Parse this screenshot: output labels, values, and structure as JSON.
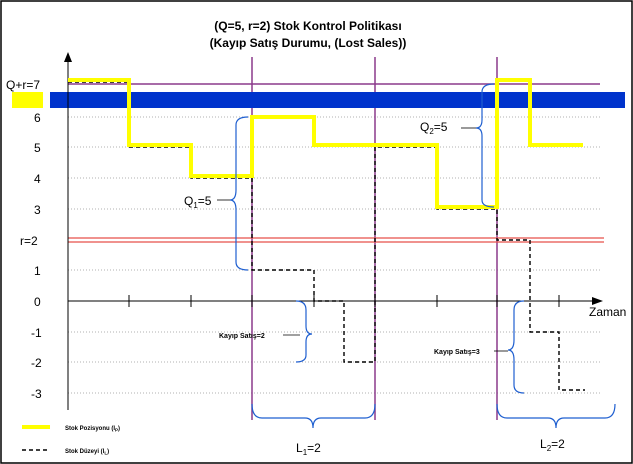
{
  "title_line1": "(Q=5, r=2) Stok Kontrol Politikası",
  "title_line2": "(Kayıp Satış Durumu, (Lost Sales))",
  "y_labels": [
    "Q+r=7",
    "6",
    "5",
    "4",
    "3",
    "r=2",
    "1",
    "0",
    "-1",
    "-2",
    "-3"
  ],
  "x_axis_label": "Zaman",
  "annotations": {
    "q1": "Q",
    "q1_sub": "1",
    "q1_val": "=5",
    "q2": "Q",
    "q2_sub": "2",
    "q2_val": "=5",
    "lost1": "Kayıp Satış=2",
    "lost2": "Kayıp Satış=3",
    "l1": "L",
    "l1_sub": "1",
    "l1_val": "=2",
    "l2": "L",
    "l2_sub": "2",
    "l2_val": "=2"
  },
  "legend": {
    "position_label": "Stok Pozisyonu (I",
    "position_sub": "P",
    "level_label": "Stok Düzeyi (I",
    "level_sub": "L"
  },
  "colors": {
    "position": "#ffff00",
    "level": "#000000",
    "reorder_line": "#e8504a",
    "max_line": "#8b3a8b",
    "band": "#0033cc",
    "brace": "#1f5fd0"
  },
  "chart_data": {
    "type": "line",
    "ylim": [
      -3,
      7
    ],
    "series": [
      {
        "name": "Stok Pozisyonu (IP)",
        "points": [
          [
            0,
            7
          ],
          [
            1,
            7
          ],
          [
            1,
            5
          ],
          [
            2,
            5
          ],
          [
            2,
            4
          ],
          [
            3,
            4
          ],
          [
            3,
            6
          ],
          [
            4,
            6
          ],
          [
            4,
            5
          ],
          [
            6,
            5
          ],
          [
            6,
            3
          ],
          [
            7,
            3
          ],
          [
            7,
            7
          ],
          [
            7.5,
            7
          ],
          [
            7.5,
            5
          ],
          [
            8.3,
            5
          ]
        ]
      },
      {
        "name": "Stok Düzeyi (IL)",
        "points": [
          [
            0,
            7
          ],
          [
            1,
            7
          ],
          [
            1,
            5
          ],
          [
            2,
            5
          ],
          [
            2,
            4
          ],
          [
            3,
            4
          ],
          [
            3,
            1
          ],
          [
            4,
            1
          ],
          [
            4,
            0
          ],
          [
            5,
            0
          ],
          [
            5,
            5
          ],
          [
            6,
            5
          ],
          [
            6,
            3
          ],
          [
            7,
            3
          ],
          [
            7,
            2
          ],
          [
            8,
            2
          ],
          [
            8,
            -1
          ],
          [
            9,
            -1
          ],
          [
            9,
            -3
          ],
          [
            9.4,
            -3
          ]
        ]
      }
    ],
    "reference_lines": [
      {
        "y": 7,
        "label": "Q+r=7"
      },
      {
        "y": 2,
        "label": "r=2"
      }
    ]
  }
}
